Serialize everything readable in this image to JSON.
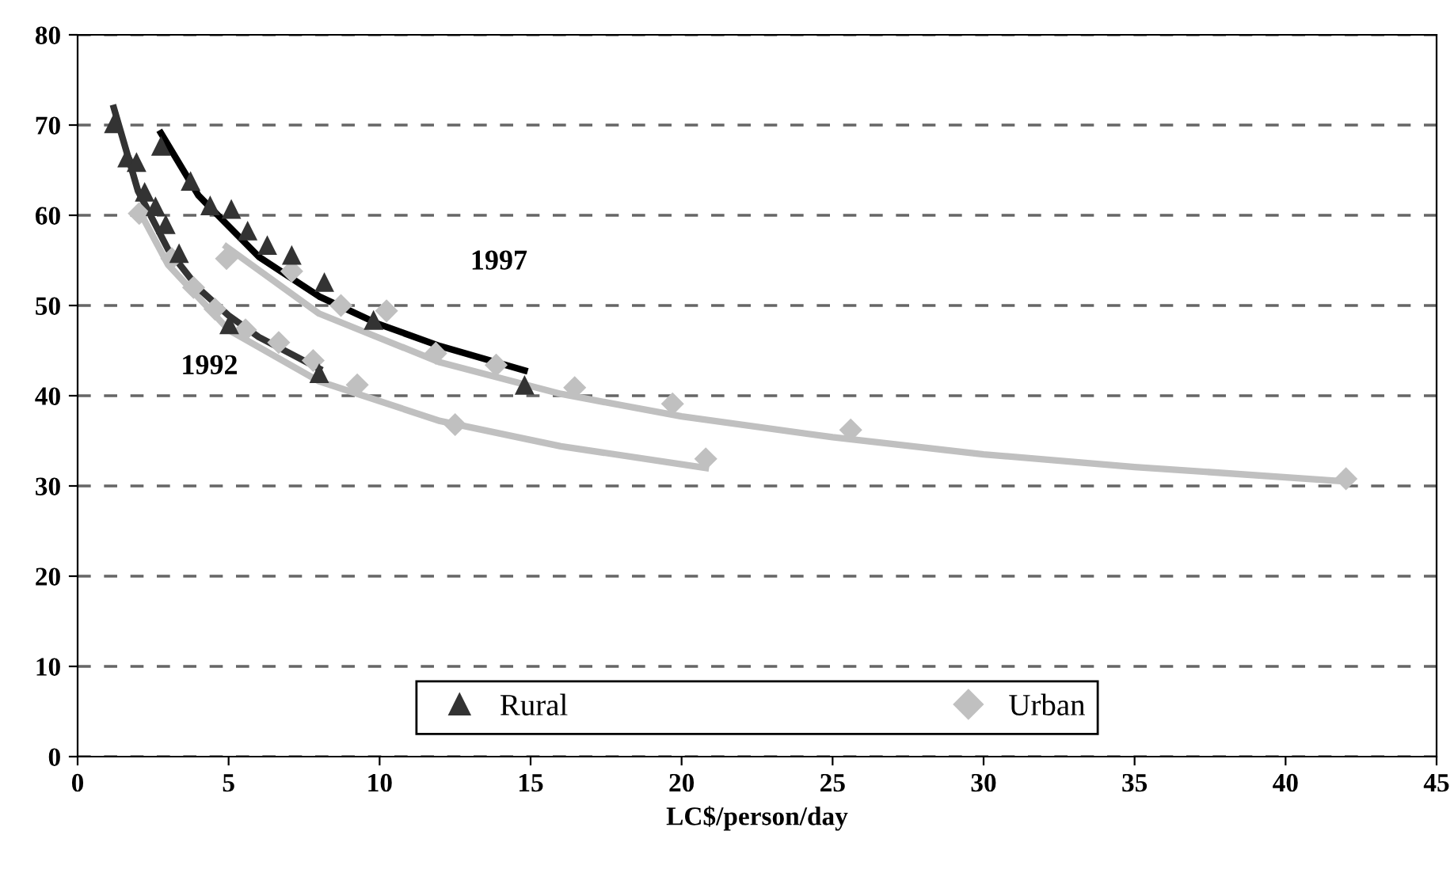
{
  "chart_data": {
    "type": "scatter",
    "xlabel": "LC$/person/day",
    "xlim": [
      0,
      45
    ],
    "xticks": [
      0,
      5,
      10,
      15,
      20,
      25,
      30,
      35,
      40,
      45
    ],
    "ylim": [
      0,
      80
    ],
    "yticks": [
      0,
      10,
      20,
      30,
      40,
      50,
      60,
      70,
      80
    ],
    "grid": "y",
    "legend": "bottom",
    "series": [
      {
        "type": "line",
        "color": "#c0c0c0",
        "marker": "none",
        "x": [
          2.04,
          3,
          5,
          8,
          12,
          16,
          20.8
        ],
        "values": [
          60.5,
          54.5,
          47.3,
          41.6,
          37.2,
          34.4,
          32.0
        ]
      },
      {
        "type": "line",
        "color": "#c0c0c0",
        "marker": "none",
        "x": [
          4.93,
          8,
          12,
          16,
          20,
          25,
          30,
          35,
          42
        ],
        "values": [
          56.5,
          49.1,
          43.7,
          40.2,
          37.7,
          35.4,
          33.5,
          32.1,
          30.5
        ]
      },
      {
        "type": "line",
        "color": "#333333",
        "marker": "none",
        "x": [
          1.2,
          2,
          3,
          4,
          5,
          6,
          8
        ],
        "values": [
          71.9,
          62.7,
          56.2,
          51.9,
          48.9,
          46.5,
          43.0
        ]
      },
      {
        "type": "line",
        "color": "#000000",
        "marker": "none",
        "x": [
          2.76,
          4,
          6,
          8,
          10,
          12,
          14.8
        ],
        "values": [
          69.1,
          62.2,
          55.4,
          51.0,
          47.9,
          45.5,
          42.8
        ]
      },
      {
        "name": "Rural",
        "color": "#333333",
        "marker": "triangle",
        "x": [
          1.2,
          2.76,
          1.64,
          1.95,
          2.22,
          2.58,
          2.92,
          3.36,
          3.74,
          4.39,
          5.09,
          5.63,
          6.28,
          7.09,
          8.17,
          9.8,
          5.02,
          8.0,
          14.8
        ],
        "values": [
          70.2,
          67.7,
          66.4,
          65.9,
          62.6,
          61,
          59,
          55.8,
          63.8,
          61.1,
          60.7,
          58.3,
          56.7,
          55.6,
          52.6,
          48.4,
          47.9,
          42.5,
          41.2
        ]
      },
      {
        "name": "Urban",
        "color": "#c0c0c0",
        "marker": "diamond",
        "x": [
          2.04,
          3.12,
          3.84,
          4.93,
          4.55,
          5.56,
          6.66,
          7.09,
          7.8,
          8.72,
          9.26,
          10.23,
          11.86,
          12.5,
          13.86,
          16.46,
          19.7,
          20.8,
          25.6,
          42.0
        ],
        "values": [
          60.2,
          55.2,
          52.0,
          55.2,
          49.6,
          47.3,
          45.9,
          53.8,
          43.9,
          50.0,
          41.2,
          49.4,
          44.7,
          36.8,
          43.4,
          40.9,
          39.1,
          33.0,
          36.2,
          30.8
        ]
      }
    ],
    "annotations": [
      "1992",
      "1997"
    ]
  }
}
